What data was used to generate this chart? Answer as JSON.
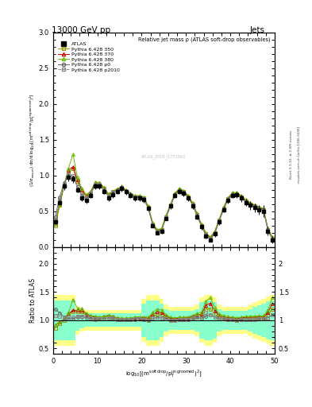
{
  "title_left": "13000 GeV pp",
  "title_right": "Jets",
  "plot_title": "Relative jet mass ρ (ATLAS soft-drop observables)",
  "xlabel": "log$_{10}$[(m$^{\\rm soft\\,drop}$/p$_{\\rm T}^{\\rm ungroomed}$)$^{2}$]",
  "ylabel_main": "(1/σ$_{\\rm resum}$) dσ/d log$_{10}$[(m$^{\\rm soft\\,drop}$/p$_{\\rm T}^{\\rm ungroomed}$)$^{2}$]",
  "ylabel_ratio": "Ratio to ATLAS",
  "right_label1": "Rivet 3.1.10, ≥ 2.5M events",
  "right_label2": "mcplots.cern.ch [arXiv:1306.3436]",
  "watermark": "ATLAS_2019_I1772563",
  "xmin": 0,
  "xmax": 50,
  "ymin_main": 0,
  "ymax_main": 3,
  "ymin_ratio": 0.4,
  "ymax_ratio": 2.3,
  "xticks": [
    0,
    10,
    20,
    30,
    40,
    50
  ],
  "yticks_main": [
    0,
    0.5,
    1.0,
    1.5,
    2.0,
    2.5,
    3.0
  ],
  "yticks_ratio": [
    0.5,
    1.0,
    1.5,
    2.0
  ],
  "x_data": [
    0.5,
    1.5,
    2.5,
    3.5,
    4.5,
    5.5,
    6.5,
    7.5,
    8.5,
    9.5,
    10.5,
    11.5,
    12.5,
    13.5,
    14.5,
    15.5,
    16.5,
    17.5,
    18.5,
    19.5,
    20.5,
    21.5,
    22.5,
    23.5,
    24.5,
    25.5,
    26.5,
    27.5,
    28.5,
    29.5,
    30.5,
    31.5,
    32.5,
    33.5,
    34.5,
    35.5,
    36.5,
    37.5,
    38.5,
    39.5,
    40.5,
    41.5,
    42.5,
    43.5,
    44.5,
    45.5,
    46.5,
    47.5,
    48.5,
    49.5
  ],
  "atlas_y": [
    0.35,
    0.62,
    0.85,
    0.97,
    0.95,
    0.8,
    0.68,
    0.65,
    0.72,
    0.85,
    0.85,
    0.78,
    0.68,
    0.73,
    0.78,
    0.82,
    0.77,
    0.72,
    0.68,
    0.68,
    0.66,
    0.54,
    0.3,
    0.2,
    0.22,
    0.4,
    0.57,
    0.72,
    0.78,
    0.75,
    0.68,
    0.57,
    0.42,
    0.28,
    0.15,
    0.1,
    0.18,
    0.35,
    0.52,
    0.65,
    0.72,
    0.73,
    0.68,
    0.62,
    0.58,
    0.55,
    0.52,
    0.5,
    0.22,
    0.1
  ],
  "atlas_ey": [
    0.03,
    0.04,
    0.05,
    0.05,
    0.05,
    0.04,
    0.04,
    0.04,
    0.04,
    0.04,
    0.04,
    0.04,
    0.04,
    0.04,
    0.04,
    0.04,
    0.04,
    0.04,
    0.04,
    0.04,
    0.04,
    0.03,
    0.03,
    0.03,
    0.03,
    0.03,
    0.04,
    0.04,
    0.04,
    0.04,
    0.04,
    0.04,
    0.04,
    0.04,
    0.03,
    0.03,
    0.04,
    0.04,
    0.04,
    0.04,
    0.04,
    0.05,
    0.05,
    0.05,
    0.06,
    0.06,
    0.07,
    0.08,
    0.06,
    0.05
  ],
  "py350_y": [
    0.3,
    0.58,
    0.85,
    1.05,
    1.1,
    0.92,
    0.78,
    0.7,
    0.75,
    0.88,
    0.88,
    0.82,
    0.73,
    0.77,
    0.8,
    0.83,
    0.78,
    0.73,
    0.7,
    0.7,
    0.68,
    0.55,
    0.32,
    0.22,
    0.24,
    0.42,
    0.58,
    0.73,
    0.8,
    0.77,
    0.7,
    0.6,
    0.45,
    0.3,
    0.18,
    0.12,
    0.2,
    0.37,
    0.54,
    0.67,
    0.74,
    0.74,
    0.7,
    0.64,
    0.6,
    0.57,
    0.54,
    0.52,
    0.24,
    0.12
  ],
  "py370_y": [
    0.32,
    0.6,
    0.87,
    1.08,
    1.12,
    0.94,
    0.8,
    0.72,
    0.77,
    0.9,
    0.9,
    0.83,
    0.74,
    0.78,
    0.81,
    0.84,
    0.79,
    0.74,
    0.71,
    0.71,
    0.69,
    0.56,
    0.33,
    0.23,
    0.25,
    0.43,
    0.59,
    0.74,
    0.81,
    0.78,
    0.71,
    0.61,
    0.46,
    0.31,
    0.19,
    0.13,
    0.21,
    0.38,
    0.55,
    0.68,
    0.75,
    0.75,
    0.71,
    0.65,
    0.61,
    0.58,
    0.55,
    0.53,
    0.25,
    0.13
  ],
  "py380_y": [
    0.32,
    0.6,
    0.87,
    1.1,
    1.3,
    0.97,
    0.82,
    0.73,
    0.78,
    0.91,
    0.9,
    0.83,
    0.74,
    0.78,
    0.81,
    0.85,
    0.8,
    0.75,
    0.72,
    0.72,
    0.7,
    0.57,
    0.34,
    0.24,
    0.26,
    0.44,
    0.6,
    0.75,
    0.82,
    0.79,
    0.72,
    0.62,
    0.47,
    0.32,
    0.2,
    0.14,
    0.22,
    0.39,
    0.56,
    0.69,
    0.76,
    0.76,
    0.72,
    0.66,
    0.62,
    0.59,
    0.56,
    0.54,
    0.26,
    0.14
  ],
  "pyp0_y": [
    0.42,
    0.7,
    0.9,
    1.0,
    0.98,
    0.84,
    0.72,
    0.68,
    0.74,
    0.86,
    0.87,
    0.8,
    0.71,
    0.75,
    0.79,
    0.83,
    0.78,
    0.73,
    0.69,
    0.7,
    0.67,
    0.54,
    0.31,
    0.21,
    0.23,
    0.41,
    0.57,
    0.72,
    0.79,
    0.76,
    0.69,
    0.59,
    0.44,
    0.29,
    0.16,
    0.11,
    0.19,
    0.36,
    0.53,
    0.66,
    0.73,
    0.73,
    0.69,
    0.63,
    0.59,
    0.56,
    0.53,
    0.51,
    0.23,
    0.11
  ],
  "pyp2010_y": [
    0.38,
    0.66,
    0.88,
    1.02,
    1.0,
    0.85,
    0.73,
    0.69,
    0.75,
    0.87,
    0.87,
    0.8,
    0.71,
    0.76,
    0.79,
    0.83,
    0.78,
    0.73,
    0.7,
    0.7,
    0.67,
    0.54,
    0.31,
    0.21,
    0.23,
    0.41,
    0.57,
    0.72,
    0.79,
    0.76,
    0.69,
    0.59,
    0.44,
    0.29,
    0.17,
    0.11,
    0.19,
    0.36,
    0.53,
    0.66,
    0.73,
    0.73,
    0.69,
    0.63,
    0.59,
    0.56,
    0.53,
    0.51,
    0.23,
    0.11
  ],
  "color_atlas": "#000000",
  "color_py350": "#999900",
  "color_py370": "#cc0000",
  "color_py380": "#66bb00",
  "color_pyp0": "#666666",
  "color_pyp2010": "#888888",
  "band_yellow": "#ffff88",
  "band_green": "#88ffcc",
  "yellow_lo": [
    0.55,
    0.55,
    0.55,
    0.55,
    0.55,
    0.75,
    0.8,
    0.82,
    0.82,
    0.82,
    0.82,
    0.82,
    0.82,
    0.82,
    0.82,
    0.82,
    0.82,
    0.82,
    0.82,
    0.82,
    0.62,
    0.55,
    0.55,
    0.55,
    0.62,
    0.72,
    0.76,
    0.76,
    0.76,
    0.76,
    0.76,
    0.76,
    0.72,
    0.6,
    0.55,
    0.55,
    0.6,
    0.72,
    0.76,
    0.76,
    0.76,
    0.76,
    0.76,
    0.76,
    0.72,
    0.68,
    0.65,
    0.62,
    0.58,
    0.55
  ],
  "yellow_hi": [
    1.45,
    1.45,
    1.45,
    1.45,
    1.45,
    1.25,
    1.2,
    1.18,
    1.18,
    1.18,
    1.18,
    1.18,
    1.18,
    1.18,
    1.18,
    1.18,
    1.18,
    1.18,
    1.18,
    1.18,
    1.38,
    1.45,
    1.45,
    1.45,
    1.38,
    1.28,
    1.24,
    1.24,
    1.24,
    1.24,
    1.24,
    1.24,
    1.28,
    1.4,
    1.45,
    1.45,
    1.4,
    1.28,
    1.24,
    1.24,
    1.24,
    1.24,
    1.24,
    1.24,
    1.28,
    1.32,
    1.35,
    1.38,
    1.42,
    1.45
  ],
  "green_lo": [
    0.65,
    0.65,
    0.65,
    0.65,
    0.65,
    0.82,
    0.86,
    0.88,
    0.88,
    0.88,
    0.88,
    0.88,
    0.88,
    0.88,
    0.88,
    0.88,
    0.88,
    0.88,
    0.88,
    0.88,
    0.7,
    0.65,
    0.65,
    0.65,
    0.7,
    0.8,
    0.83,
    0.83,
    0.83,
    0.83,
    0.83,
    0.83,
    0.8,
    0.68,
    0.65,
    0.65,
    0.68,
    0.8,
    0.83,
    0.83,
    0.83,
    0.83,
    0.83,
    0.83,
    0.8,
    0.76,
    0.73,
    0.7,
    0.66,
    0.65
  ],
  "green_hi": [
    1.35,
    1.35,
    1.35,
    1.35,
    1.35,
    1.18,
    1.14,
    1.12,
    1.12,
    1.12,
    1.12,
    1.12,
    1.12,
    1.12,
    1.12,
    1.12,
    1.12,
    1.12,
    1.12,
    1.12,
    1.3,
    1.35,
    1.35,
    1.35,
    1.3,
    1.2,
    1.17,
    1.17,
    1.17,
    1.17,
    1.17,
    1.17,
    1.2,
    1.32,
    1.35,
    1.35,
    1.32,
    1.2,
    1.17,
    1.17,
    1.17,
    1.17,
    1.17,
    1.17,
    1.2,
    1.24,
    1.27,
    1.3,
    1.34,
    1.35
  ]
}
